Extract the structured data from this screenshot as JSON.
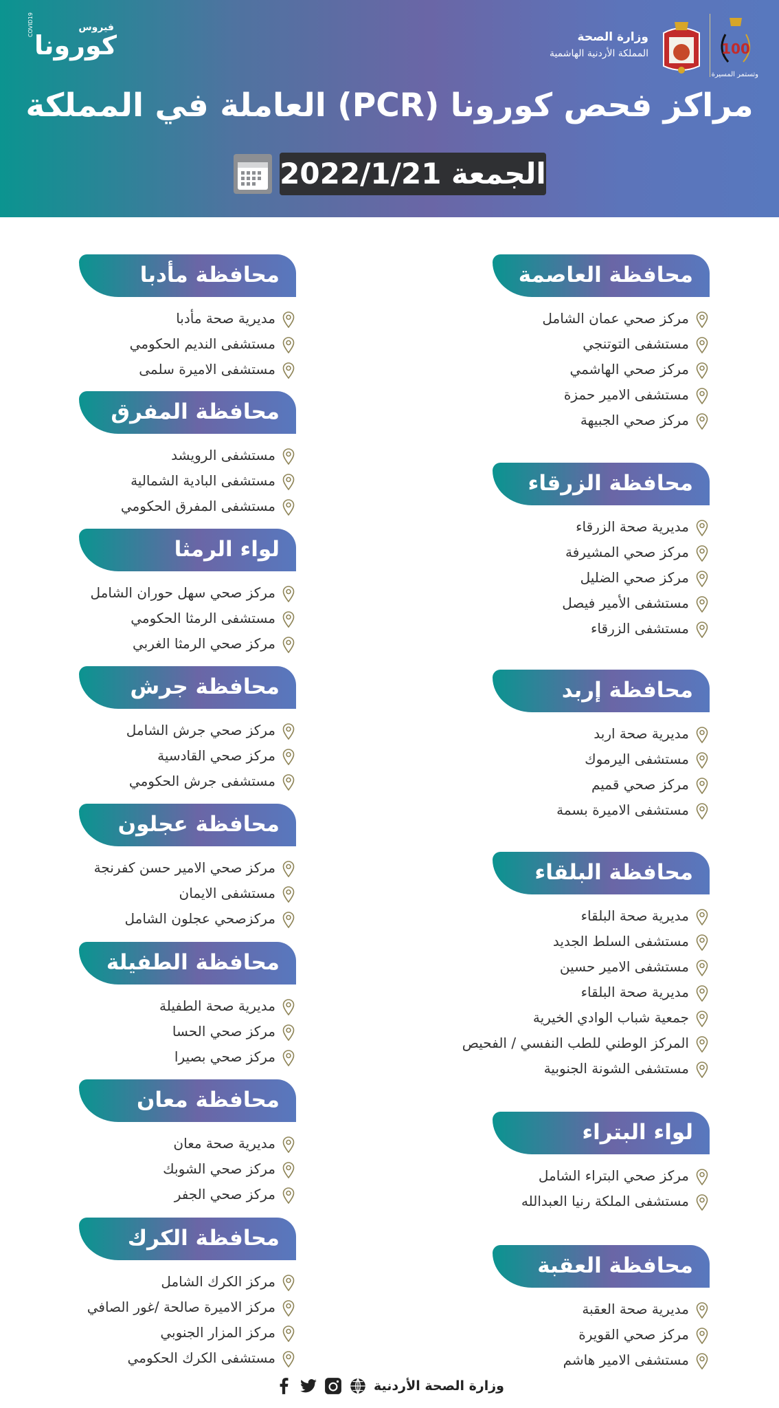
{
  "header": {
    "corona_logo": {
      "small": "فيروس",
      "big": "كورونا",
      "covid": "COVID19"
    },
    "ministry_name": "وزارة الصحة",
    "kingdom_name": "المملكة الأردنية الهاشمية",
    "centenary_number": "100",
    "centenary_tagline": "وتستمر المسيرة",
    "title": "مراكز فحص كورونا (PCR) العاملة في المملكة",
    "date": "الجمعة 2022/1/21"
  },
  "colors": {
    "teal": "#0b9490",
    "purple": "#6a66a6",
    "blue": "#5878be",
    "pin": "#8f8558",
    "date_bg": "#2f3033"
  },
  "icons": {
    "pin": "map-pin-icon",
    "calendar": "calendar-icon"
  },
  "right_column": [
    {
      "title": "محافظة العاصمة",
      "items": [
        "مركز صحي عمان الشامل",
        "مستشفى التوتنجي",
        "مركز صحي الهاشمي",
        "مستشفى الامير حمزة",
        "مركز صحي الجبيهة"
      ]
    },
    {
      "title": "محافظة الزرقاء",
      "items": [
        "مديرية صحة الزرقاء",
        "مركز صحي المشيرفة",
        "مركز صحي الضليل",
        "مستشفى الأمير فيصل",
        "مستشفى الزرقاء"
      ]
    },
    {
      "title": "محافظة إربد",
      "items": [
        "مديرية صحة اربد",
        "مستشفى اليرموك",
        "مركز صحي قميم",
        "مستشفى الاميرة بسمة"
      ]
    },
    {
      "title": "محافظة البلقاء",
      "items": [
        "مديرية صحة البلقاء",
        "مستشفى السلط الجديد",
        "مستشفى الامير حسين",
        "مديرية صحة البلقاء",
        "جمعية شباب الوادي الخيرية",
        "المركز الوطني للطب النفسي / الفحيص",
        "مستشفى الشونة الجنوبية"
      ]
    },
    {
      "title": "لواء البتراء",
      "items": [
        "مركز صحي البتراء الشامل",
        "مستشفى الملكة رنيا العبدالله"
      ]
    },
    {
      "title": "محافظة العقبة",
      "items": [
        "مديرية صحة العقبة",
        "مركز صحي القويرة",
        "مستشفى الامير هاشم"
      ]
    }
  ],
  "left_column": [
    {
      "title": "محافظة مأدبا",
      "items": [
        "مديرية صحة مأدبا",
        "مستشفى النديم الحكومي",
        "مستشفى الاميرة سلمى"
      ]
    },
    {
      "title": "محافظة المفرق",
      "items": [
        "مستشفى الرويشد",
        "مستشفى البادية الشمالية",
        "مستشفى المفرق الحكومي"
      ]
    },
    {
      "title": "لواء الرمثا",
      "items": [
        "مركز صحي سهل حوران الشامل",
        "مستشفى الرمثا الحكومي",
        "مركز صحي الرمثا الغربي"
      ]
    },
    {
      "title": "محافظة جرش",
      "items": [
        "مركز صحي جرش الشامل",
        "مركز صحي القادسية",
        "مستشفى جرش الحكومي"
      ]
    },
    {
      "title": "محافظة عجلون",
      "items": [
        "مركز صحي الامير حسن كفرنجة",
        "مستشفى الايمان",
        "مركزصحي عجلون الشامل"
      ]
    },
    {
      "title": "محافظة الطفيلة",
      "items": [
        "مديرية صحة الطفيلة",
        "مركز صحي الحسا",
        "مركز صحي بصيرا"
      ]
    },
    {
      "title": "محافظة معان",
      "items": [
        "مديرية صحة معان",
        "مركز صحي الشوبك",
        "مركز صحي الجفر"
      ]
    },
    {
      "title": "محافظة الكرك",
      "items": [
        "مركز الكرك الشامل",
        "مركز الاميرة صالحة /غور الصافي",
        "مركز المزار الجنوبي",
        "مستشفى الكرك الحكومي"
      ]
    }
  ],
  "footer": {
    "text": "وزارة الصحة الأردنية",
    "social": [
      "globe-icon",
      "instagram-icon",
      "twitter-icon",
      "facebook-icon"
    ]
  }
}
